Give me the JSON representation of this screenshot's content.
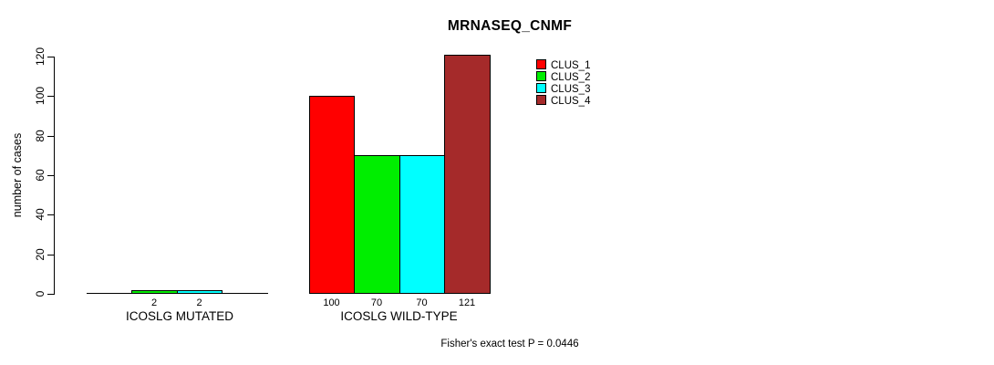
{
  "chart_data": {
    "type": "bar",
    "title": "MRNASEQ_CNMF",
    "ylabel": "number of cases",
    "ylim": [
      0,
      120
    ],
    "yticks": [
      0,
      20,
      40,
      60,
      80,
      100,
      120
    ],
    "categories": [
      "ICOSLG MUTATED",
      "ICOSLG WILD-TYPE"
    ],
    "series": [
      {
        "name": "CLUS_1",
        "color": "#ff0000",
        "values": [
          0,
          100
        ]
      },
      {
        "name": "CLUS_2",
        "color": "#00ee00",
        "values": [
          2,
          70
        ]
      },
      {
        "name": "CLUS_3",
        "color": "#00ffff",
        "values": [
          2,
          70
        ]
      },
      {
        "name": "CLUS_4",
        "color": "#a52a2a",
        "values": [
          0,
          121
        ]
      }
    ],
    "bar_labels": [
      [
        "",
        "2",
        "2",
        ""
      ],
      [
        "100",
        "70",
        "70",
        "121"
      ]
    ],
    "legend": {
      "position": "inside-top-right",
      "entries": [
        "CLUS_1",
        "CLUS_2",
        "CLUS_3",
        "CLUS_4"
      ]
    },
    "grid": false,
    "footnote": "Fisher's exact test P = 0.0446",
    "axis_color": "#000000",
    "background_color": "#ffffff"
  }
}
